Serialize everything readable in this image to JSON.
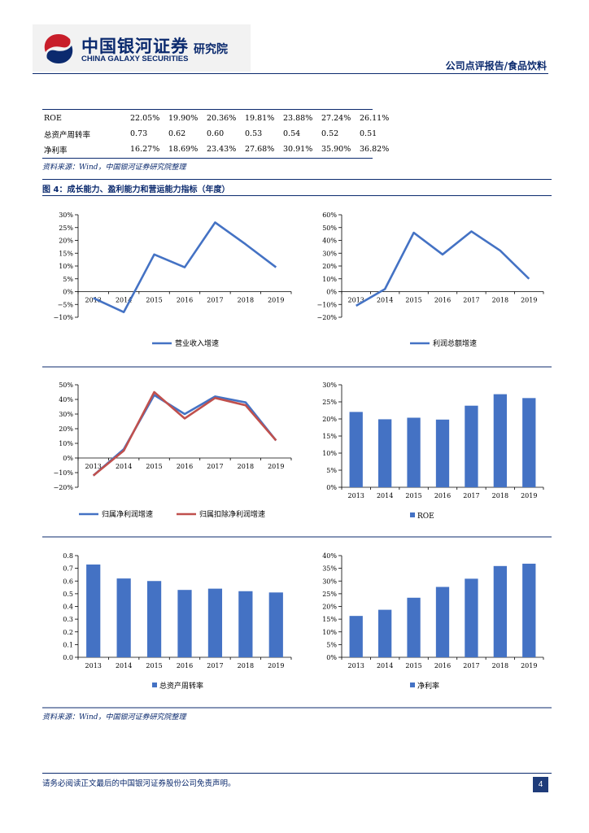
{
  "header": {
    "logo_cn": "中国银河证券",
    "logo_en": "CHINA GALAXY SECURITIES",
    "institute": "研究院",
    "report_type": "公司点评报告/食品饮料"
  },
  "kpi_table": {
    "rows": [
      {
        "label": "ROE",
        "values": [
          "22.05%",
          "19.90%",
          "20.36%",
          "19.81%",
          "23.88%",
          "27.24%",
          "26.11%"
        ]
      },
      {
        "label": "总资产周转率",
        "values": [
          "0.73",
          "0.62",
          "0.60",
          "0.53",
          "0.54",
          "0.52",
          "0.51"
        ]
      },
      {
        "label": "净利率",
        "values": [
          "16.27%",
          "18.69%",
          "23.43%",
          "27.68%",
          "30.91%",
          "35.90%",
          "36.82%"
        ]
      }
    ]
  },
  "source_note_1": "资料来源：Wind，中国银河证券研究院整理",
  "figure_title": "图 4：成长能力、盈利能力和营运能力指标（年度）",
  "source_note_2": "资料来源：Wind，中国银河证券研究院整理",
  "footer": {
    "disclaimer": "请务必阅读正文最后的中国银河证券股份公司免责声明。",
    "page": "4"
  },
  "colors": {
    "blue": "#4472c4",
    "red": "#c0504d",
    "navy": "#0b2a6e"
  },
  "chart_data": [
    {
      "id": "c1",
      "type": "line",
      "categories": [
        "2013",
        "2014",
        "2015",
        "2016",
        "2017",
        "2018",
        "2019"
      ],
      "series": [
        {
          "name": "营业收入增速",
          "color": "#4472c4",
          "values": [
            -2.5,
            -8,
            14.5,
            9.5,
            27,
            18.5,
            9.5
          ]
        }
      ],
      "ylim": [
        -10,
        30
      ],
      "yticks": [
        -10,
        -5,
        0,
        5,
        10,
        15,
        20,
        25,
        30
      ],
      "percent": true
    },
    {
      "id": "c2",
      "type": "line",
      "categories": [
        "2013",
        "2014",
        "2015",
        "2016",
        "2017",
        "2018",
        "2019"
      ],
      "series": [
        {
          "name": "利润总额增速",
          "color": "#4472c4",
          "values": [
            -11,
            2,
            46,
            29,
            47,
            32,
            10
          ]
        }
      ],
      "ylim": [
        -20,
        60
      ],
      "yticks": [
        -20,
        -10,
        0,
        10,
        20,
        30,
        40,
        50,
        60
      ],
      "percent": true
    },
    {
      "id": "c3",
      "type": "line",
      "categories": [
        "2013",
        "2014",
        "2015",
        "2016",
        "2017",
        "2018",
        "2019"
      ],
      "series": [
        {
          "name": "归属净利润增速",
          "color": "#4472c4",
          "values": [
            -12,
            6,
            43,
            30,
            42,
            38,
            12
          ]
        },
        {
          "name": "归属扣除净利润增速",
          "color": "#c0504d",
          "values": [
            -12,
            5,
            45,
            27,
            41,
            36,
            12
          ]
        }
      ],
      "ylim": [
        -20,
        50
      ],
      "yticks": [
        -20,
        -10,
        0,
        10,
        20,
        30,
        40,
        50
      ],
      "percent": true
    },
    {
      "id": "c4",
      "type": "bar",
      "categories": [
        "2013",
        "2014",
        "2015",
        "2016",
        "2017",
        "2018",
        "2019"
      ],
      "series": [
        {
          "name": "ROE",
          "color": "#4472c4",
          "values": [
            22.05,
            19.9,
            20.36,
            19.81,
            23.88,
            27.24,
            26.11
          ]
        }
      ],
      "ylim": [
        0,
        30
      ],
      "yticks": [
        0,
        5,
        10,
        15,
        20,
        25,
        30
      ],
      "percent": true
    },
    {
      "id": "c5",
      "type": "bar",
      "categories": [
        "2013",
        "2014",
        "2015",
        "2016",
        "2017",
        "2018",
        "2019"
      ],
      "series": [
        {
          "name": "总资产周转率",
          "color": "#4472c4",
          "values": [
            0.73,
            0.62,
            0.6,
            0.53,
            0.54,
            0.52,
            0.51
          ]
        }
      ],
      "ylim": [
        0,
        0.8
      ],
      "yticks": [
        0,
        0.1,
        0.2,
        0.3,
        0.4,
        0.5,
        0.6,
        0.7,
        0.8
      ],
      "percent": false
    },
    {
      "id": "c6",
      "type": "bar",
      "categories": [
        "2013",
        "2014",
        "2015",
        "2016",
        "2017",
        "2018",
        "2019"
      ],
      "series": [
        {
          "name": "净利率",
          "color": "#4472c4",
          "values": [
            16.27,
            18.69,
            23.43,
            27.68,
            30.91,
            35.9,
            36.82
          ]
        }
      ],
      "ylim": [
        0,
        40
      ],
      "yticks": [
        0,
        5,
        10,
        15,
        20,
        25,
        30,
        35,
        40
      ],
      "percent": true
    }
  ]
}
